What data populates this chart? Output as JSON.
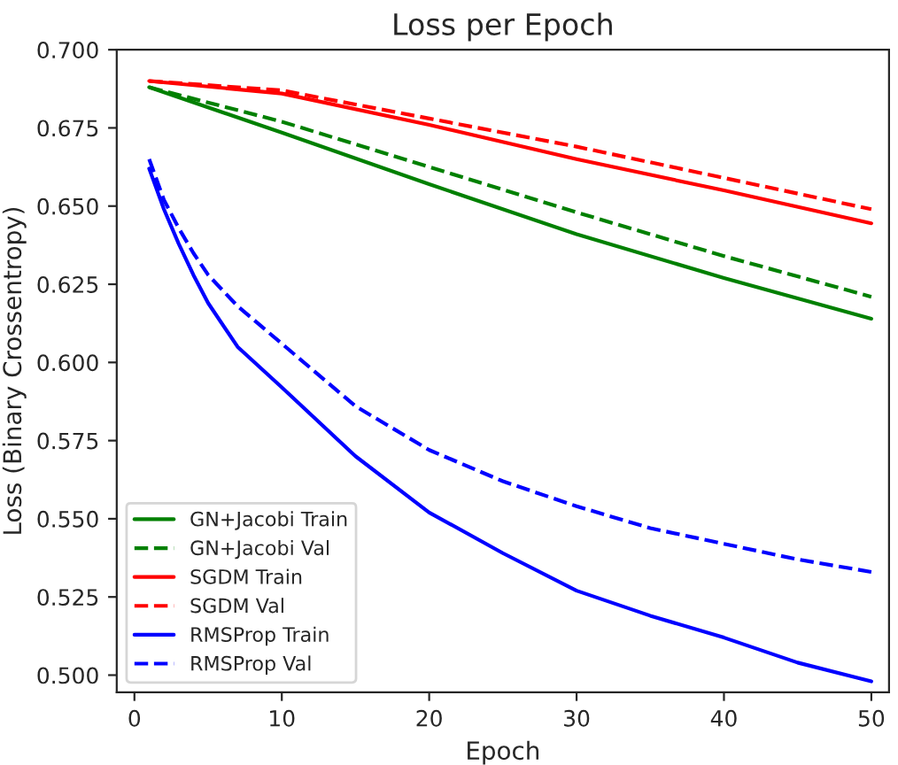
{
  "chart_data": {
    "type": "line",
    "title": "Loss per Epoch",
    "xlabel": "Epoch",
    "ylabel": "Loss (Binary Crossentropy)",
    "xlim": [
      -1.2,
      51.2
    ],
    "ylim": [
      0.4945,
      0.7
    ],
    "xticks": [
      0,
      10,
      20,
      30,
      40,
      50
    ],
    "yticks": [
      {
        "value": 0.5,
        "label": "0.500"
      },
      {
        "value": 0.525,
        "label": "0.525"
      },
      {
        "value": 0.55,
        "label": "0.550"
      },
      {
        "value": 0.575,
        "label": "0.575"
      },
      {
        "value": 0.6,
        "label": "0.600"
      },
      {
        "value": 0.625,
        "label": "0.625"
      },
      {
        "value": 0.65,
        "label": "0.650"
      },
      {
        "value": 0.675,
        "label": "0.675"
      },
      {
        "value": 0.7,
        "label": "0.700"
      }
    ],
    "grid": false,
    "legend": "bottom left",
    "marker": "none",
    "series": [
      {
        "name": "GN+Jacobi Train",
        "color": "#008000",
        "line_style": "solid",
        "x": [
          1,
          10,
          20,
          30,
          40,
          50
        ],
        "values": [
          0.688,
          0.6735,
          0.657,
          0.641,
          0.627,
          0.614
        ]
      },
      {
        "name": "GN+Jacobi Val",
        "color": "#008000",
        "line_style": "dashed",
        "x": [
          1,
          10,
          20,
          30,
          40,
          50
        ],
        "values": [
          0.688,
          0.677,
          0.6625,
          0.648,
          0.634,
          0.621
        ]
      },
      {
        "name": "SGDM Train",
        "color": "#ff0000",
        "line_style": "solid",
        "x": [
          1,
          10,
          20,
          30,
          40,
          50
        ],
        "values": [
          0.69,
          0.686,
          0.676,
          0.665,
          0.655,
          0.6445
        ]
      },
      {
        "name": "SGDM Val",
        "color": "#ff0000",
        "line_style": "dashed",
        "x": [
          1,
          10,
          20,
          30,
          40,
          50
        ],
        "values": [
          0.69,
          0.687,
          0.678,
          0.669,
          0.659,
          0.649
        ]
      },
      {
        "name": "RMSProp Train",
        "color": "#0000ff",
        "line_style": "solid",
        "x": [
          1,
          2,
          3,
          4,
          5,
          7,
          10,
          15,
          20,
          25,
          30,
          35,
          40,
          45,
          50
        ],
        "values": [
          0.662,
          0.649,
          0.638,
          0.628,
          0.619,
          0.605,
          0.592,
          0.57,
          0.552,
          0.539,
          0.527,
          0.519,
          0.512,
          0.504,
          0.498
        ]
      },
      {
        "name": "RMSProp Val",
        "color": "#0000ff",
        "line_style": "dashed",
        "x": [
          1,
          2,
          3,
          4,
          5,
          7,
          10,
          15,
          20,
          25,
          30,
          35,
          40,
          45,
          50
        ],
        "values": [
          0.665,
          0.652,
          0.643,
          0.635,
          0.628,
          0.618,
          0.606,
          0.586,
          0.572,
          0.562,
          0.554,
          0.547,
          0.542,
          0.537,
          0.533
        ]
      }
    ]
  }
}
